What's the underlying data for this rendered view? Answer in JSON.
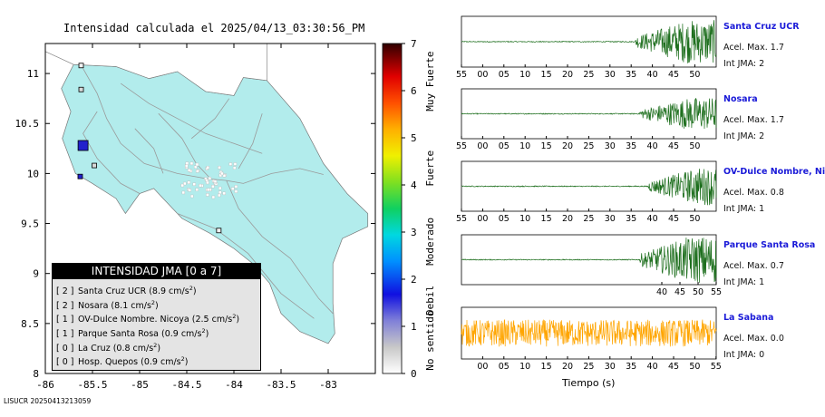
{
  "header": {
    "title": "Intensidad calculada el 2025/04/13_03:30:56_PM"
  },
  "footer": {
    "id": "LISUCR 20250413213059"
  },
  "colors": {
    "land": "#b2ecec",
    "road": "#9a9a9a",
    "station_marker": "#2222cc",
    "trace_station": "#1e6f1e",
    "trace_noise": "#ffa500",
    "station_label": "#1a1ad8"
  },
  "legend": {
    "title": "INTENSIDAD JMA [0 a 7]",
    "entries": [
      {
        "level": "[ 2 ]",
        "name": "Santa Cruz UCR (8.9 cm/s",
        "sup": "2",
        "close": ")"
      },
      {
        "level": "[ 2 ]",
        "name": "Nosara (8.1 cm/s",
        "sup": "2",
        "close": ")"
      },
      {
        "level": "[ 1 ]",
        "name": "OV-Dulce Nombre. Nicoya (2.5 cm/s",
        "sup": "2",
        "close": ")"
      },
      {
        "level": "[ 1 ]",
        "name": "Parque Santa Rosa (0.9 cm/s",
        "sup": "2",
        "close": ")"
      },
      {
        "level": "[ 0 ]",
        "name": "La Cruz (0.8 cm/s",
        "sup": "2",
        "close": ")"
      },
      {
        "level": "[ 0 ]",
        "name": "Hosp. Quepos (0.9 cm/s",
        "sup": "2",
        "close": ")"
      }
    ]
  },
  "scale": {
    "ticks": [
      "0",
      "1",
      "2",
      "3",
      "4",
      "5",
      "6",
      "7"
    ],
    "labels": [
      "No sentido",
      "Debil",
      "Moderado",
      "Fuerte",
      "Muy Fuerte"
    ]
  },
  "time_axis_label": "Tiempo (s)",
  "chart_data": [
    {
      "type": "scatter",
      "name": "intensity-map",
      "xlim": [
        -86,
        -82.5
      ],
      "ylim": [
        8,
        11.3
      ],
      "x_ticks": [
        "-86",
        "-85.5",
        "-85",
        "-84.5",
        "-84",
        "-83.5",
        "-83"
      ],
      "y_ticks": [
        "8",
        "8.5",
        "9",
        "9.5",
        "10",
        "10.5",
        "11"
      ],
      "stations": [
        {
          "lon": -85.6,
          "lat": 10.28,
          "intensity": 2,
          "size": "large"
        },
        {
          "lon": -85.63,
          "lat": 9.97,
          "intensity": 2,
          "size": "small"
        },
        {
          "lon": -85.48,
          "lat": 10.08,
          "intensity": 1,
          "size": "small"
        },
        {
          "lon": -85.62,
          "lat": 10.84,
          "intensity": 1,
          "size": "small"
        },
        {
          "lon": -85.62,
          "lat": 11.08,
          "intensity": 0,
          "size": "small"
        },
        {
          "lon": -84.16,
          "lat": 9.43,
          "intensity": 0,
          "size": "small"
        }
      ]
    },
    {
      "type": "line",
      "name": "waveforms",
      "stations": [
        {
          "name": "Santa Cruz UCR",
          "acel": "Acel. Max. 1.7",
          "int": "Int JMA: 2",
          "kind": "signal",
          "onset": 41,
          "amplitude": 0.9,
          "x_ticks": [
            "55",
            "00",
            "05",
            "10",
            "15",
            "20",
            "25",
            "30",
            "35",
            "40",
            "45",
            "50"
          ]
        },
        {
          "name": "Nosara",
          "acel": "Acel. Max. 1.7",
          "int": "Int JMA: 2",
          "kind": "signal",
          "onset": 42,
          "amplitude": 0.7,
          "x_ticks": [
            "55",
            "00",
            "05",
            "10",
            "15",
            "20",
            "25",
            "30",
            "35",
            "40",
            "45",
            "50"
          ]
        },
        {
          "name": "OV-Dulce Nombre, Nicoya",
          "acel": "Acel. Max. 0.8",
          "int": "Int JMA: 1",
          "kind": "signal",
          "onset": 44,
          "amplitude": 0.8,
          "x_ticks": [
            "55",
            "00",
            "05",
            "10",
            "15",
            "20",
            "25",
            "30",
            "35",
            "40",
            "45",
            "50"
          ]
        },
        {
          "name": "Parque Santa Rosa",
          "acel": "Acel. Max. 0.7",
          "int": "Int JMA: 1",
          "kind": "signal",
          "onset": 42,
          "amplitude": 1.0,
          "x_ticks": [
            "40",
            "45",
            "50",
            "55"
          ]
        },
        {
          "name": "La Sabana",
          "acel": "Acel. Max. 0.0",
          "int": "Int JMA: 0",
          "kind": "noise",
          "onset": 0,
          "amplitude": 0.55,
          "x_ticks": [
            "00",
            "05",
            "10",
            "15",
            "20",
            "25",
            "30",
            "35",
            "40",
            "45",
            "50",
            "55"
          ]
        }
      ]
    }
  ]
}
